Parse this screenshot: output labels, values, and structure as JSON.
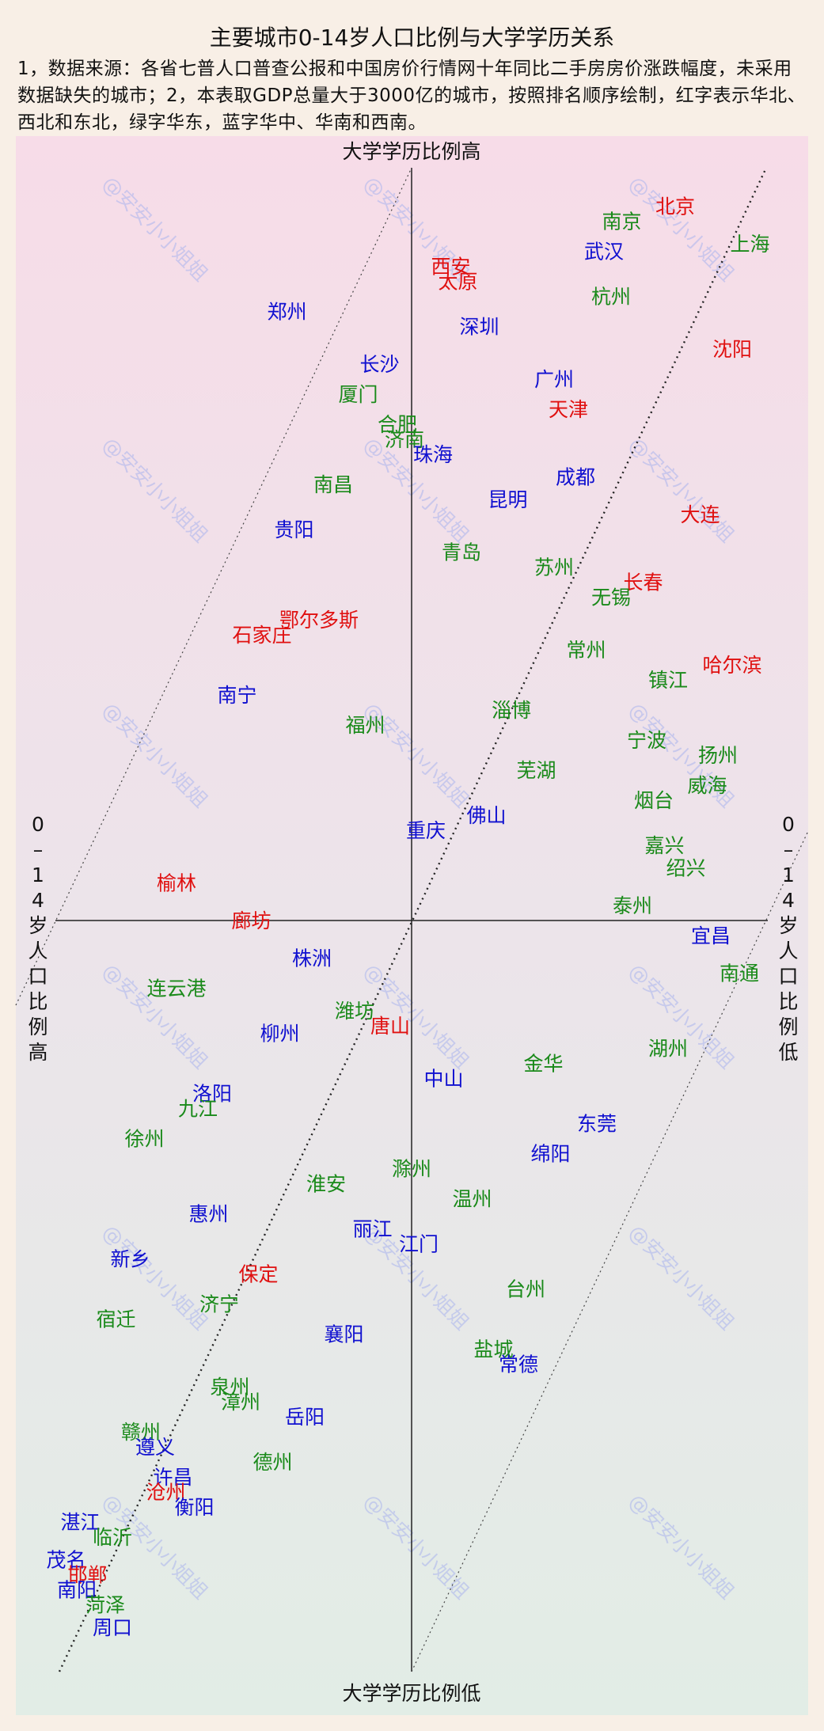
{
  "chart_data": {
    "type": "scatter",
    "title": "主要城市0-14岁人口比例与大学学历关系",
    "subtitle": "1，数据来源：各省七普人口普查公报和中国房价行情网十年同比二手房房价涨跌幅度，未采用数据缺失的城市；2，本表取GDP总量大于3000亿的城市，按照排名顺序绘制，红字表示华北、西北和东北，绿字华东，蓝字华中、华南和西南。",
    "ylabel_top": "大学学历比例高",
    "ylabel_bottom": "大学学历比例低",
    "xlabel_left": "0-14岁人口比例高",
    "xlabel_right": "0-14岁人口比例低",
    "watermark": "@安安小小姐姐",
    "colors": {
      "north": "#e01010",
      "east": "#1a8a1a",
      "south": "#1010d0"
    },
    "x_range": [
      -10,
      10
    ],
    "y_range": [
      -10,
      10
    ],
    "points": [
      {
        "name": "北京",
        "region": "north",
        "x": 7.4,
        "y": 9.5
      },
      {
        "name": "南京",
        "region": "east",
        "x": 5.9,
        "y": 9.3
      },
      {
        "name": "上海",
        "region": "east",
        "x": 9.5,
        "y": 9.0
      },
      {
        "name": "武汉",
        "region": "south",
        "x": 5.4,
        "y": 8.9
      },
      {
        "name": "西安",
        "region": "north",
        "x": 1.1,
        "y": 8.7
      },
      {
        "name": "太原",
        "region": "north",
        "x": 1.3,
        "y": 8.5
      },
      {
        "name": "杭州",
        "region": "east",
        "x": 5.6,
        "y": 8.3
      },
      {
        "name": "郑州",
        "region": "south",
        "x": -3.5,
        "y": 8.1
      },
      {
        "name": "深圳",
        "region": "south",
        "x": 1.9,
        "y": 7.9
      },
      {
        "name": "沈阳",
        "region": "north",
        "x": 9.0,
        "y": 7.6
      },
      {
        "name": "长沙",
        "region": "south",
        "x": -0.9,
        "y": 7.4
      },
      {
        "name": "广州",
        "region": "south",
        "x": 4.0,
        "y": 7.2
      },
      {
        "name": "厦门",
        "region": "east",
        "x": -1.5,
        "y": 7.0
      },
      {
        "name": "天津",
        "region": "north",
        "x": 4.4,
        "y": 6.8
      },
      {
        "name": "合肥",
        "region": "east",
        "x": -0.4,
        "y": 6.6
      },
      {
        "name": "济南",
        "region": "east",
        "x": -0.2,
        "y": 6.4
      },
      {
        "name": "珠海",
        "region": "south",
        "x": 0.6,
        "y": 6.2
      },
      {
        "name": "成都",
        "region": "south",
        "x": 4.6,
        "y": 5.9
      },
      {
        "name": "南昌",
        "region": "east",
        "x": -2.2,
        "y": 5.8
      },
      {
        "name": "昆明",
        "region": "south",
        "x": 2.7,
        "y": 5.6
      },
      {
        "name": "大连",
        "region": "north",
        "x": 8.1,
        "y": 5.4
      },
      {
        "name": "贵阳",
        "region": "south",
        "x": -3.3,
        "y": 5.2
      },
      {
        "name": "青岛",
        "region": "east",
        "x": 1.4,
        "y": 4.9
      },
      {
        "name": "苏州",
        "region": "east",
        "x": 4.0,
        "y": 4.7
      },
      {
        "name": "长春",
        "region": "north",
        "x": 6.5,
        "y": 4.5
      },
      {
        "name": "无锡",
        "region": "east",
        "x": 5.6,
        "y": 4.3
      },
      {
        "name": "鄂尔多斯",
        "region": "north",
        "x": -2.6,
        "y": 4.0
      },
      {
        "name": "石家庄",
        "region": "north",
        "x": -4.2,
        "y": 3.8
      },
      {
        "name": "常州",
        "region": "east",
        "x": 4.9,
        "y": 3.6
      },
      {
        "name": "哈尔滨",
        "region": "north",
        "x": 9.0,
        "y": 3.4
      },
      {
        "name": "镇江",
        "region": "east",
        "x": 7.2,
        "y": 3.2
      },
      {
        "name": "南宁",
        "region": "south",
        "x": -4.9,
        "y": 3.0
      },
      {
        "name": "淄博",
        "region": "east",
        "x": 2.8,
        "y": 2.8
      },
      {
        "name": "福州",
        "region": "east",
        "x": -1.3,
        "y": 2.6
      },
      {
        "name": "宁波",
        "region": "east",
        "x": 6.6,
        "y": 2.4
      },
      {
        "name": "扬州",
        "region": "east",
        "x": 8.6,
        "y": 2.2
      },
      {
        "name": "芜湖",
        "region": "east",
        "x": 3.5,
        "y": 2.0
      },
      {
        "name": "威海",
        "region": "east",
        "x": 8.3,
        "y": 1.8
      },
      {
        "name": "烟台",
        "region": "east",
        "x": 6.8,
        "y": 1.6
      },
      {
        "name": "佛山",
        "region": "south",
        "x": 2.1,
        "y": 1.4
      },
      {
        "name": "重庆",
        "region": "south",
        "x": 0.4,
        "y": 1.2
      },
      {
        "name": "嘉兴",
        "region": "east",
        "x": 7.1,
        "y": 1.0
      },
      {
        "name": "绍兴",
        "region": "east",
        "x": 7.7,
        "y": 0.7
      },
      {
        "name": "榆林",
        "region": "north",
        "x": -6.6,
        "y": 0.5
      },
      {
        "name": "泰州",
        "region": "east",
        "x": 6.2,
        "y": 0.2
      },
      {
        "name": "廊坊",
        "region": "north",
        "x": -4.5,
        "y": 0.0
      },
      {
        "name": "宜昌",
        "region": "south",
        "x": 8.4,
        "y": -0.2
      },
      {
        "name": "株洲",
        "region": "south",
        "x": -2.8,
        "y": -0.5
      },
      {
        "name": "南通",
        "region": "east",
        "x": 9.2,
        "y": -0.7
      },
      {
        "name": "连云港",
        "region": "east",
        "x": -6.6,
        "y": -0.9
      },
      {
        "name": "潍坊",
        "region": "east",
        "x": -1.6,
        "y": -1.2
      },
      {
        "name": "柳州",
        "region": "south",
        "x": -3.7,
        "y": -1.5
      },
      {
        "name": "唐山",
        "region": "north",
        "x": -0.6,
        "y": -1.4
      },
      {
        "name": "湖州",
        "region": "east",
        "x": 7.2,
        "y": -1.7
      },
      {
        "name": "金华",
        "region": "east",
        "x": 3.7,
        "y": -1.9
      },
      {
        "name": "中山",
        "region": "south",
        "x": 0.9,
        "y": -2.1
      },
      {
        "name": "洛阳",
        "region": "south",
        "x": -5.6,
        "y": -2.3
      },
      {
        "name": "九江",
        "region": "east",
        "x": -6.0,
        "y": -2.5
      },
      {
        "name": "东莞",
        "region": "south",
        "x": 5.2,
        "y": -2.7
      },
      {
        "name": "徐州",
        "region": "east",
        "x": -7.5,
        "y": -2.9
      },
      {
        "name": "绵阳",
        "region": "south",
        "x": 3.9,
        "y": -3.1
      },
      {
        "name": "滁州",
        "region": "east",
        "x": 0.0,
        "y": -3.3
      },
      {
        "name": "淮安",
        "region": "east",
        "x": -2.4,
        "y": -3.5
      },
      {
        "name": "温州",
        "region": "east",
        "x": 1.7,
        "y": -3.7
      },
      {
        "name": "惠州",
        "region": "south",
        "x": -5.7,
        "y": -3.9
      },
      {
        "name": "丽江",
        "region": "south",
        "x": -1.1,
        "y": -4.1
      },
      {
        "name": "江门",
        "region": "south",
        "x": 0.2,
        "y": -4.3
      },
      {
        "name": "新乡",
        "region": "south",
        "x": -7.9,
        "y": -4.5
      },
      {
        "name": "保定",
        "region": "north",
        "x": -4.3,
        "y": -4.7
      },
      {
        "name": "台州",
        "region": "east",
        "x": 3.2,
        "y": -4.9
      },
      {
        "name": "济宁",
        "region": "east",
        "x": -5.4,
        "y": -5.1
      },
      {
        "name": "宿迁",
        "region": "east",
        "x": -8.3,
        "y": -5.3
      },
      {
        "name": "襄阳",
        "region": "south",
        "x": -1.9,
        "y": -5.5
      },
      {
        "name": "盐城",
        "region": "east",
        "x": 2.3,
        "y": -5.7
      },
      {
        "name": "常德",
        "region": "south",
        "x": 3.0,
        "y": -5.9
      },
      {
        "name": "泉州",
        "region": "east",
        "x": -5.1,
        "y": -6.2
      },
      {
        "name": "漳州",
        "region": "east",
        "x": -4.8,
        "y": -6.4
      },
      {
        "name": "岳阳",
        "region": "south",
        "x": -3.0,
        "y": -6.6
      },
      {
        "name": "赣州",
        "region": "east",
        "x": -7.6,
        "y": -6.8
      },
      {
        "name": "遵义",
        "region": "south",
        "x": -7.2,
        "y": -7.0
      },
      {
        "name": "德州",
        "region": "east",
        "x": -3.9,
        "y": -7.2
      },
      {
        "name": "许昌",
        "region": "south",
        "x": -6.7,
        "y": -7.4
      },
      {
        "name": "沧州",
        "region": "north",
        "x": -6.9,
        "y": -7.6
      },
      {
        "name": "衡阳",
        "region": "south",
        "x": -6.1,
        "y": -7.8
      },
      {
        "name": "湛江",
        "region": "south",
        "x": -9.3,
        "y": -8.0
      },
      {
        "name": "临沂",
        "region": "east",
        "x": -8.4,
        "y": -8.2
      },
      {
        "name": "茂名",
        "region": "south",
        "x": -9.7,
        "y": -8.5
      },
      {
        "name": "邯郸",
        "region": "north",
        "x": -9.1,
        "y": -8.7
      },
      {
        "name": "南阳",
        "region": "south",
        "x": -9.4,
        "y": -8.9
      },
      {
        "name": "菏泽",
        "region": "east",
        "x": -8.6,
        "y": -9.1
      },
      {
        "name": "周口",
        "region": "south",
        "x": -8.4,
        "y": -9.4
      }
    ]
  }
}
